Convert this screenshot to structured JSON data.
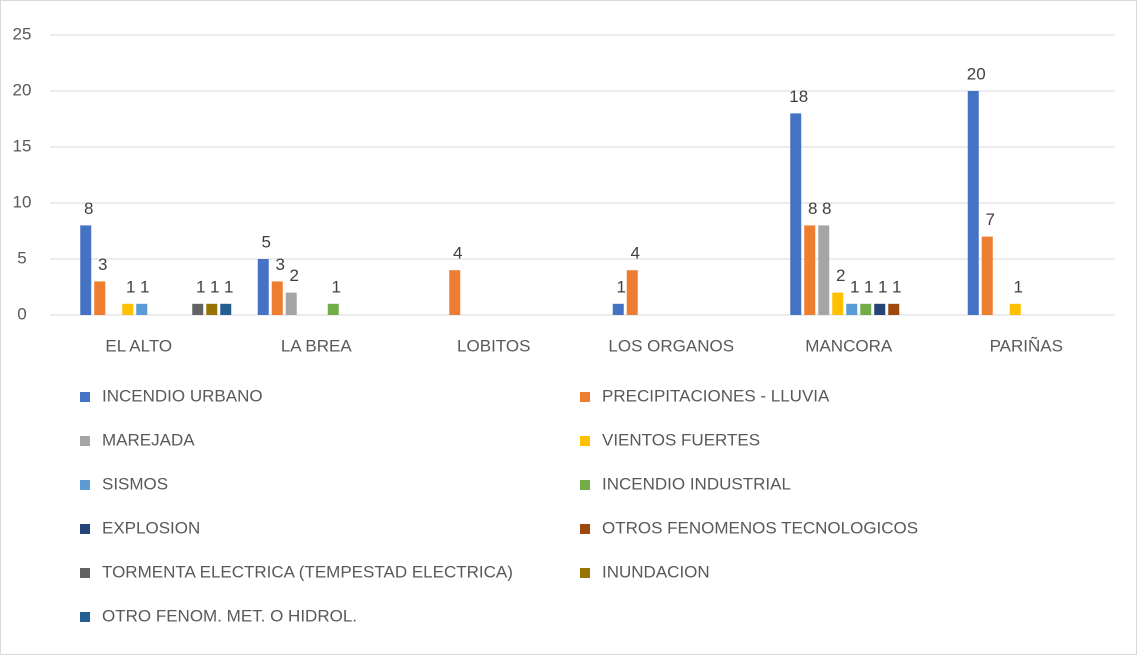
{
  "chart_data": {
    "type": "bar",
    "categories": [
      "EL ALTO",
      "LA BREA",
      "LOBITOS",
      "LOS ORGANOS",
      "MANCORA",
      "PARIÑAS"
    ],
    "series": [
      {
        "name": "INCENDIO URBANO",
        "color": "#4472c4",
        "values": [
          8,
          5,
          null,
          1,
          18,
          20
        ]
      },
      {
        "name": "PRECIPITACIONES - LLUVIA",
        "color": "#ed7d31",
        "values": [
          3,
          3,
          4,
          4,
          8,
          7
        ]
      },
      {
        "name": "MAREJADA",
        "color": "#a5a5a5",
        "values": [
          null,
          2,
          null,
          null,
          8,
          null
        ]
      },
      {
        "name": "VIENTOS FUERTES",
        "color": "#ffc000",
        "values": [
          1,
          null,
          null,
          null,
          2,
          1
        ]
      },
      {
        "name": "SISMOS",
        "color": "#5b9bd5",
        "values": [
          1,
          null,
          null,
          null,
          1,
          null
        ]
      },
      {
        "name": "INCENDIO INDUSTRIAL",
        "color": "#70ad47",
        "values": [
          null,
          1,
          null,
          null,
          1,
          null
        ]
      },
      {
        "name": "EXPLOSION",
        "color": "#264478",
        "values": [
          null,
          null,
          null,
          null,
          1,
          null
        ]
      },
      {
        "name": "OTROS FENOMENOS TECNOLOGICOS",
        "color": "#9e480e",
        "values": [
          null,
          null,
          null,
          null,
          1,
          null
        ]
      },
      {
        "name": "TORMENTA ELECTRICA (TEMPESTAD ELECTRICA)",
        "color": "#636363",
        "values": [
          1,
          null,
          null,
          null,
          null,
          null
        ]
      },
      {
        "name": "INUNDACION",
        "color": "#997300",
        "values": [
          1,
          null,
          null,
          null,
          null,
          null
        ]
      },
      {
        "name": "OTRO FENOM. MET. O HIDROL.",
        "color": "#255e91",
        "values": [
          1,
          null,
          null,
          null,
          null,
          null
        ]
      }
    ],
    "ylim": [
      0,
      25
    ],
    "yticks": [
      0,
      5,
      10,
      15,
      20,
      25
    ],
    "grid": true,
    "legend": "bottom"
  }
}
